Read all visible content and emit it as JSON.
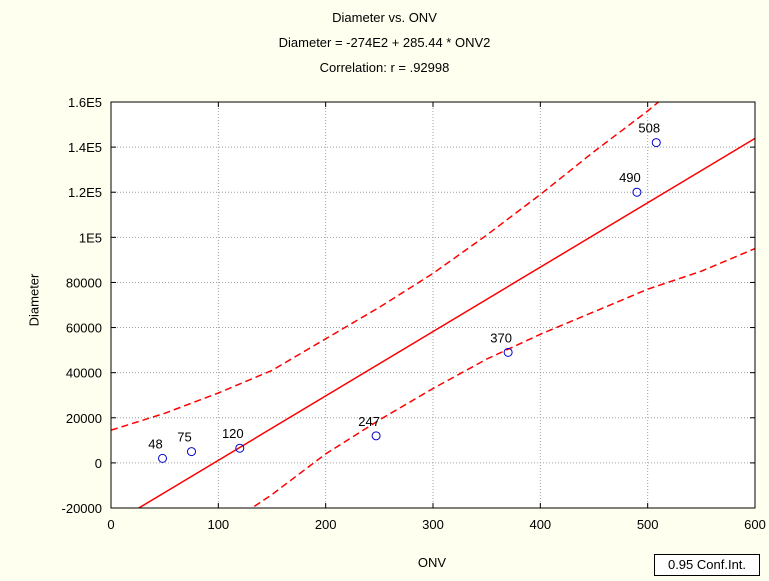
{
  "chart_data": {
    "type": "scatter",
    "title": "Diameter vs. ONV",
    "subtitle": "Diameter = -274E2 + 285.44 * ONV2",
    "correlation": "Correlation: r = .92998",
    "xlabel": "ONV",
    "ylabel": "Diameter",
    "xlim": [
      0,
      600
    ],
    "ylim": [
      -20000,
      160000
    ],
    "x_ticks": [
      0,
      100,
      200,
      300,
      400,
      500,
      600
    ],
    "x_tick_labels": [
      "0",
      "100",
      "200",
      "300",
      "400",
      "500",
      "600"
    ],
    "y_ticks": [
      -20000,
      0,
      20000,
      40000,
      60000,
      80000,
      100000,
      120000,
      140000,
      160000
    ],
    "y_tick_labels": [
      "-20000",
      "0",
      "20000",
      "40000",
      "60000",
      "80000",
      "1E5",
      "1.2E5",
      "1.4E5",
      "1.6E5"
    ],
    "grid": true,
    "points": [
      {
        "label": "48",
        "x": 48,
        "y": 2000
      },
      {
        "label": "75",
        "x": 75,
        "y": 5000
      },
      {
        "label": "120",
        "x": 120,
        "y": 6500
      },
      {
        "label": "247",
        "x": 247,
        "y": 12000
      },
      {
        "label": "370",
        "x": 370,
        "y": 49000
      },
      {
        "label": "490",
        "x": 490,
        "y": 120000
      },
      {
        "label": "508",
        "x": 508,
        "y": 142000
      }
    ],
    "regression": {
      "intercept": -27400,
      "slope": 285.44
    },
    "conf_upper": [
      {
        "x": 0,
        "y": 14500
      },
      {
        "x": 50,
        "y": 22000
      },
      {
        "x": 100,
        "y": 31000
      },
      {
        "x": 150,
        "y": 41000
      },
      {
        "x": 200,
        "y": 55000
      },
      {
        "x": 250,
        "y": 69000
      },
      {
        "x": 300,
        "y": 84000
      },
      {
        "x": 350,
        "y": 101000
      },
      {
        "x": 400,
        "y": 119000
      },
      {
        "x": 450,
        "y": 138000
      },
      {
        "x": 500,
        "y": 156000
      },
      {
        "x": 515,
        "y": 162000
      }
    ],
    "conf_lower": [
      {
        "x": 125,
        "y": -22000
      },
      {
        "x": 150,
        "y": -14000
      },
      {
        "x": 200,
        "y": 4000
      },
      {
        "x": 250,
        "y": 19000
      },
      {
        "x": 300,
        "y": 33000
      },
      {
        "x": 350,
        "y": 46000
      },
      {
        "x": 400,
        "y": 57000
      },
      {
        "x": 450,
        "y": 67000
      },
      {
        "x": 500,
        "y": 77000
      },
      {
        "x": 550,
        "y": 85000
      },
      {
        "x": 600,
        "y": 95000
      }
    ],
    "line_color": "#ff0000",
    "point_color": "#0000cc",
    "legend_text": "0.95 Conf.Int.",
    "legend_placement": "bottom-right"
  }
}
